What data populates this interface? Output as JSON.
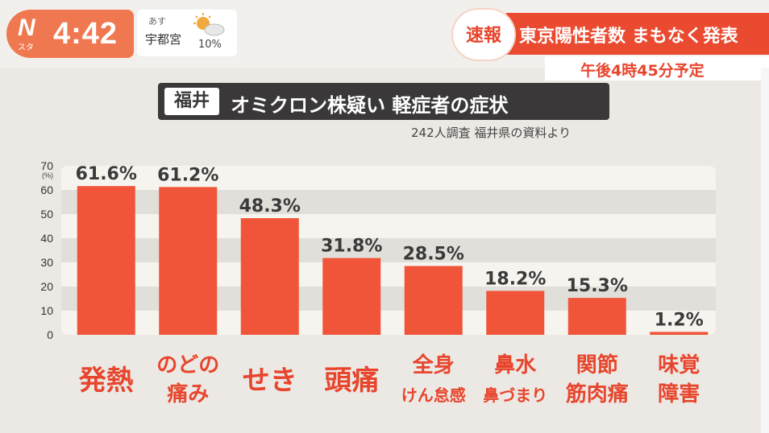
{
  "header": {
    "logo": "N",
    "logo_sub": "スタ",
    "time": "4:42",
    "weather": {
      "day": "あす",
      "city": "宇都宮",
      "precip": "10%",
      "icon": "sun-cloud-icon"
    },
    "breaking_label": "速報",
    "headline": "東京陽性者数 まもなく発表",
    "headline_sub": "午後4時45分予定"
  },
  "title": {
    "region": "福井",
    "text": "オミクロン株疑い 軽症者の症状"
  },
  "source": "242人調査 福井県の資料より",
  "colors": {
    "bar": "#f0553a",
    "accent": "#e8452d",
    "title_bg": "#3a3838",
    "label": "#e8452d"
  },
  "chart_data": {
    "type": "bar",
    "categories": [
      [
        "発熱"
      ],
      [
        "のどの",
        "痛み"
      ],
      [
        "せき"
      ],
      [
        "頭痛"
      ],
      [
        "全身",
        "けん怠感"
      ],
      [
        "鼻水",
        "鼻づまり"
      ],
      [
        "関節",
        "筋肉痛"
      ],
      [
        "味覚",
        "障害"
      ]
    ],
    "values": [
      61.6,
      61.2,
      48.3,
      31.8,
      28.5,
      18.2,
      15.3,
      1.2
    ],
    "value_labels": [
      "61.6%",
      "61.2%",
      "48.3%",
      "31.8%",
      "28.5%",
      "18.2%",
      "15.3%",
      "1.2%"
    ],
    "y_ticks": [
      "0",
      "10",
      "20",
      "30",
      "40",
      "50",
      "60",
      "70"
    ],
    "y_unit": "(%)",
    "ylim": [
      0,
      70
    ],
    "grid": "alternating bands"
  }
}
